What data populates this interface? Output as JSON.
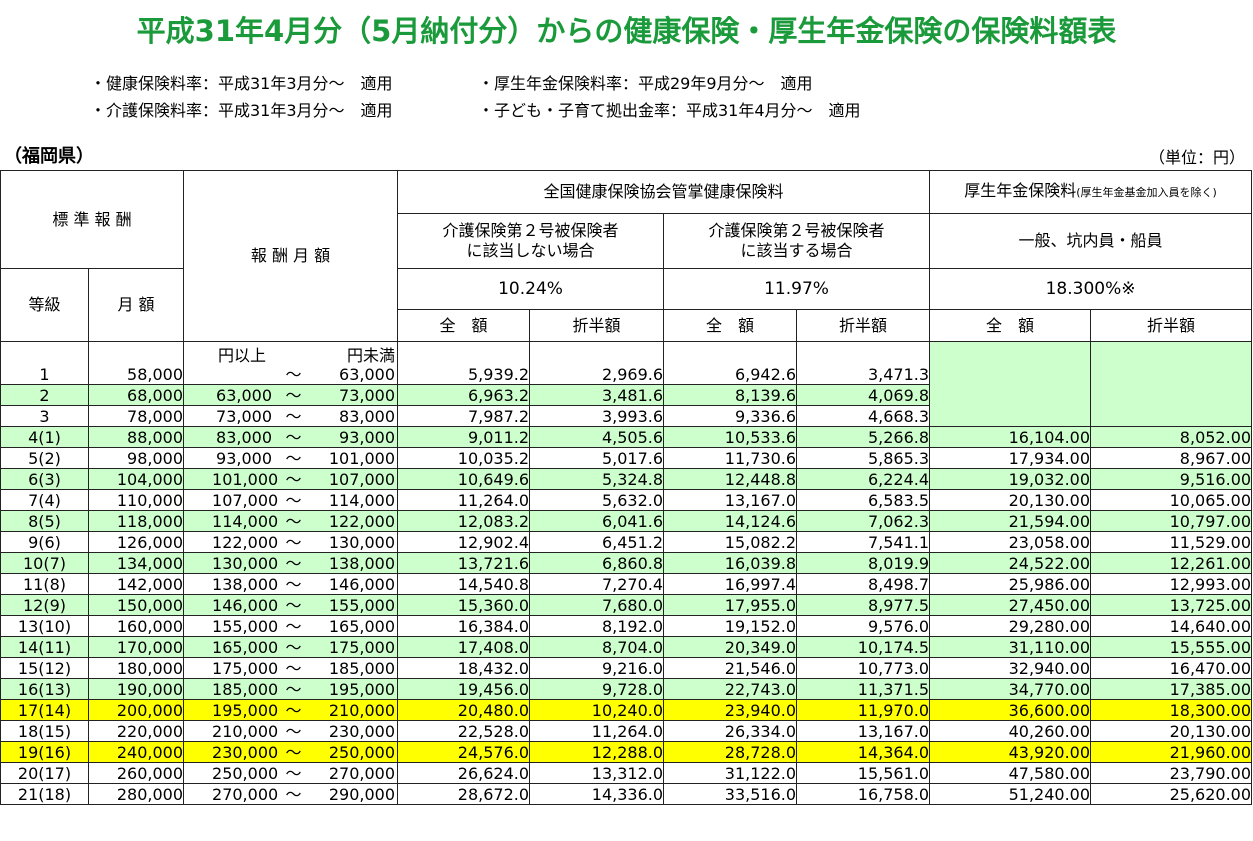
{
  "title": "平成31年4月分（5月納付分）からの健康保険・厚生年金保険の保険料額表",
  "notes": [
    {
      "left": "・健康保険料率：平成31年3月分～　適用",
      "right": "・厚生年金保険料率：平成29年9月分～　適用"
    },
    {
      "left": "・介護保険料率：平成31年3月分～　適用",
      "right": "・子ども・子育て拠出金率：平成31年4月分～　適用"
    }
  ],
  "prefecture": "（福岡県）",
  "unit": "（単位：円）",
  "header": {
    "standard": "標 準 報 酬",
    "grade": "等級",
    "monthly": "月 額",
    "salary_range": "報 酬 月 額",
    "kyokai": "全国健康保険協会管掌健康保険料",
    "pension_main": "厚生年金保険料",
    "pension_note": "(厚生年金基金加入員を除く)",
    "nursing_no": "介護保険第２号被保険者\nに該当しない場合",
    "nursing_yes": "介護保険第２号被保険者\nに該当する場合",
    "pension_type": "一般、坑内員・船員",
    "rate_no": "10.24%",
    "rate_yes": "11.97%",
    "rate_pension": "18.300%※",
    "full": "全　額",
    "half": "折半額",
    "yen_from": "円以上",
    "yen_to": "円未満",
    "tilde": "～"
  },
  "rows": [
    {
      "grade": "1",
      "monthly": "58,000",
      "from": "",
      "to": "63,000",
      "a": "5,939.2",
      "b": "2,969.6",
      "c": "6,942.6",
      "d": "3,471.3",
      "e": "",
      "f": "",
      "style": "white"
    },
    {
      "grade": "2",
      "monthly": "68,000",
      "from": "63,000",
      "to": "73,000",
      "a": "6,963.2",
      "b": "3,481.6",
      "c": "8,139.6",
      "d": "4,069.8",
      "e": "",
      "f": "",
      "style": "green"
    },
    {
      "grade": "3",
      "monthly": "78,000",
      "from": "73,000",
      "to": "83,000",
      "a": "7,987.2",
      "b": "3,993.6",
      "c": "9,336.6",
      "d": "4,668.3",
      "e": "",
      "f": "",
      "style": "white"
    },
    {
      "grade": "4(1)",
      "monthly": "88,000",
      "from": "83,000",
      "to": "93,000",
      "a": "9,011.2",
      "b": "4,505.6",
      "c": "10,533.6",
      "d": "5,266.8",
      "e": "16,104.00",
      "f": "8,052.00",
      "style": "green"
    },
    {
      "grade": "5(2)",
      "monthly": "98,000",
      "from": "93,000",
      "to": "101,000",
      "a": "10,035.2",
      "b": "5,017.6",
      "c": "11,730.6",
      "d": "5,865.3",
      "e": "17,934.00",
      "f": "8,967.00",
      "style": "white"
    },
    {
      "grade": "6(3)",
      "monthly": "104,000",
      "from": "101,000",
      "to": "107,000",
      "a": "10,649.6",
      "b": "5,324.8",
      "c": "12,448.8",
      "d": "6,224.4",
      "e": "19,032.00",
      "f": "9,516.00",
      "style": "green"
    },
    {
      "grade": "7(4)",
      "monthly": "110,000",
      "from": "107,000",
      "to": "114,000",
      "a": "11,264.0",
      "b": "5,632.0",
      "c": "13,167.0",
      "d": "6,583.5",
      "e": "20,130.00",
      "f": "10,065.00",
      "style": "white"
    },
    {
      "grade": "8(5)",
      "monthly": "118,000",
      "from": "114,000",
      "to": "122,000",
      "a": "12,083.2",
      "b": "6,041.6",
      "c": "14,124.6",
      "d": "7,062.3",
      "e": "21,594.00",
      "f": "10,797.00",
      "style": "green"
    },
    {
      "grade": "9(6)",
      "monthly": "126,000",
      "from": "122,000",
      "to": "130,000",
      "a": "12,902.4",
      "b": "6,451.2",
      "c": "15,082.2",
      "d": "7,541.1",
      "e": "23,058.00",
      "f": "11,529.00",
      "style": "white"
    },
    {
      "grade": "10(7)",
      "monthly": "134,000",
      "from": "130,000",
      "to": "138,000",
      "a": "13,721.6",
      "b": "6,860.8",
      "c": "16,039.8",
      "d": "8,019.9",
      "e": "24,522.00",
      "f": "12,261.00",
      "style": "green"
    },
    {
      "grade": "11(8)",
      "monthly": "142,000",
      "from": "138,000",
      "to": "146,000",
      "a": "14,540.8",
      "b": "7,270.4",
      "c": "16,997.4",
      "d": "8,498.7",
      "e": "25,986.00",
      "f": "12,993.00",
      "style": "white"
    },
    {
      "grade": "12(9)",
      "monthly": "150,000",
      "from": "146,000",
      "to": "155,000",
      "a": "15,360.0",
      "b": "7,680.0",
      "c": "17,955.0",
      "d": "8,977.5",
      "e": "27,450.00",
      "f": "13,725.00",
      "style": "green"
    },
    {
      "grade": "13(10)",
      "monthly": "160,000",
      "from": "155,000",
      "to": "165,000",
      "a": "16,384.0",
      "b": "8,192.0",
      "c": "19,152.0",
      "d": "9,576.0",
      "e": "29,280.00",
      "f": "14,640.00",
      "style": "white"
    },
    {
      "grade": "14(11)",
      "monthly": "170,000",
      "from": "165,000",
      "to": "175,000",
      "a": "17,408.0",
      "b": "8,704.0",
      "c": "20,349.0",
      "d": "10,174.5",
      "e": "31,110.00",
      "f": "15,555.00",
      "style": "green"
    },
    {
      "grade": "15(12)",
      "monthly": "180,000",
      "from": "175,000",
      "to": "185,000",
      "a": "18,432.0",
      "b": "9,216.0",
      "c": "21,546.0",
      "d": "10,773.0",
      "e": "32,940.00",
      "f": "16,470.00",
      "style": "white"
    },
    {
      "grade": "16(13)",
      "monthly": "190,000",
      "from": "185,000",
      "to": "195,000",
      "a": "19,456.0",
      "b": "9,728.0",
      "c": "22,743.0",
      "d": "11,371.5",
      "e": "34,770.00",
      "f": "17,385.00",
      "style": "green"
    },
    {
      "grade": "17(14)",
      "monthly": "200,000",
      "from": "195,000",
      "to": "210,000",
      "a": "20,480.0",
      "b": "10,240.0",
      "c": "23,940.0",
      "d": "11,970.0",
      "e": "36,600.00",
      "f": "18,300.00",
      "style": "yellow"
    },
    {
      "grade": "18(15)",
      "monthly": "220,000",
      "from": "210,000",
      "to": "230,000",
      "a": "22,528.0",
      "b": "11,264.0",
      "c": "26,334.0",
      "d": "13,167.0",
      "e": "40,260.00",
      "f": "20,130.00",
      "style": "white"
    },
    {
      "grade": "19(16)",
      "monthly": "240,000",
      "from": "230,000",
      "to": "250,000",
      "a": "24,576.0",
      "b": "12,288.0",
      "c": "28,728.0",
      "d": "14,364.0",
      "e": "43,920.00",
      "f": "21,960.00",
      "style": "yellow"
    },
    {
      "grade": "20(17)",
      "monthly": "260,000",
      "from": "250,000",
      "to": "270,000",
      "a": "26,624.0",
      "b": "13,312.0",
      "c": "31,122.0",
      "d": "15,561.0",
      "e": "47,580.00",
      "f": "23,790.00",
      "style": "white"
    },
    {
      "grade": "21(18)",
      "monthly": "280,000",
      "from": "270,000",
      "to": "290,000",
      "a": "28,672.0",
      "b": "14,336.0",
      "c": "33,516.0",
      "d": "16,758.0",
      "e": "51,240.00",
      "f": "25,620.00",
      "style": "white"
    }
  ],
  "colors": {
    "title": "#1a9a3a",
    "green_row": "#ccffcc",
    "yellow_row": "#ffff00"
  }
}
